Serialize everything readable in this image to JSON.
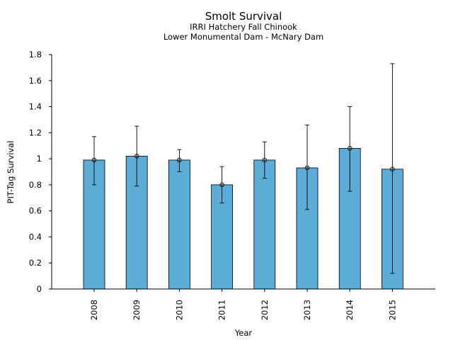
{
  "chart_data": {
    "type": "bar",
    "title": "Smolt Survival",
    "subtitles": [
      "IRRI Hatchery Fall Chinook",
      "Lower Monumental Dam - McNary Dam"
    ],
    "xlabel": "Year",
    "ylabel": "PIT-Tag Survival",
    "categories": [
      "2008",
      "2009",
      "2010",
      "2011",
      "2012",
      "2013",
      "2014",
      "2015"
    ],
    "values": [
      0.99,
      1.02,
      0.99,
      0.8,
      0.99,
      0.93,
      1.08,
      0.92
    ],
    "error_low": [
      0.8,
      0.79,
      0.9,
      0.66,
      0.85,
      0.61,
      0.75,
      0.12
    ],
    "error_high": [
      1.17,
      1.25,
      1.07,
      0.94,
      1.13,
      1.26,
      1.4,
      1.73
    ],
    "yticks": [
      "0",
      "0.2",
      "0.4",
      "0.6",
      "0.8",
      "1",
      "1.2",
      "1.4",
      "1.6",
      "1.8"
    ],
    "ylim": [
      0,
      1.8
    ],
    "grid": false,
    "bar_color": "#5bacd6",
    "edge_color": "#000000"
  }
}
